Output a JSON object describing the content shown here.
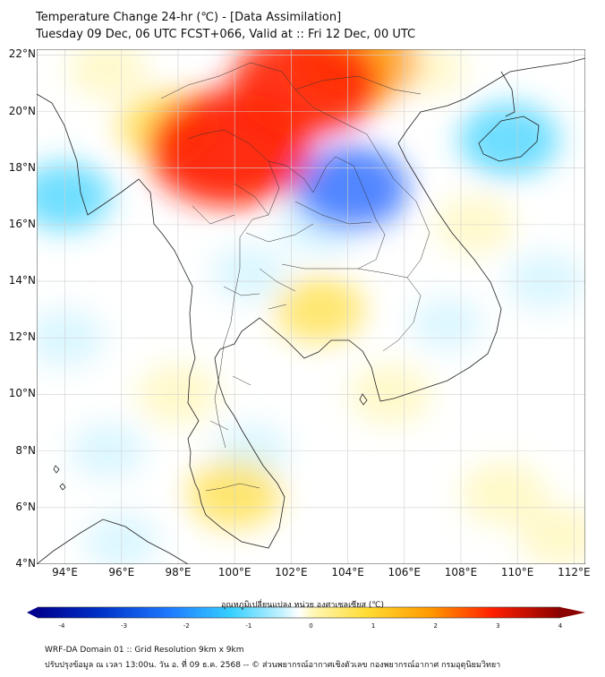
{
  "header": {
    "title_line1": "Temperature Change 24-hr (℃) - [Data Assimilation]",
    "title_line2": "Tuesday 09 Dec, 06 UTC FCST+066, Valid at :: Fri 12 Dec, 00 UTC"
  },
  "map": {
    "lat_labels": [
      "22°N",
      "20°N",
      "18°N",
      "16°N",
      "14°N",
      "12°N",
      "10°N",
      "8°N",
      "6°N",
      "4°N"
    ],
    "lon_labels": [
      "94°E",
      "96°E",
      "98°E",
      "100°E",
      "102°E",
      "104°E",
      "106°E",
      "108°E",
      "110°E",
      "112°E"
    ],
    "lat_range": [
      4,
      22.2
    ],
    "lon_range": [
      93,
      112.4
    ],
    "anomalies": [
      {
        "name": "warm-core-north-thailand",
        "lon": 99.8,
        "lat": 18.7,
        "value": 3.2
      },
      {
        "name": "warm-northeast-laos",
        "lon": 102.5,
        "lat": 21.0,
        "value": 2.8
      },
      {
        "name": "warm-ne-laos-2",
        "lon": 104.2,
        "lat": 21.8,
        "value": 2.3
      },
      {
        "name": "warm-myanmar-band",
        "lon": 97.5,
        "lat": 19.5,
        "value": 1.3
      },
      {
        "name": "cool-northeast-thailand",
        "lon": 104.1,
        "lat": 17.3,
        "value": -1.9
      },
      {
        "name": "cool-northeast-wide",
        "lon": 103.0,
        "lat": 16.0,
        "value": -1.0
      },
      {
        "name": "cool-central-thailand",
        "lon": 100.5,
        "lat": 14.3,
        "value": -0.8
      },
      {
        "name": "cool-hainan",
        "lon": 109.7,
        "lat": 19.0,
        "value": -1.5
      },
      {
        "name": "cool-bay-of-bengal-north",
        "lon": 94.0,
        "lat": 17.0,
        "value": -1.3
      },
      {
        "name": "cool-andaman-west",
        "lon": 94.0,
        "lat": 12.0,
        "value": -0.9
      },
      {
        "name": "cool-andaman-sw",
        "lon": 95.5,
        "lat": 8.0,
        "value": -0.8
      },
      {
        "name": "cool-scs-east",
        "lon": 111.0,
        "lat": 14.0,
        "value": -0.9
      },
      {
        "name": "cool-scs-mid",
        "lon": 107.5,
        "lat": 12.5,
        "value": -0.7
      },
      {
        "name": "cool-gulf-thailand",
        "lon": 100.6,
        "lat": 8.0,
        "value": -0.8
      },
      {
        "name": "cool-sumatra-north",
        "lon": 96.0,
        "lat": 4.8,
        "value": -0.8
      },
      {
        "name": "warm-cambodia",
        "lon": 103.0,
        "lat": 13.0,
        "value": 1.2
      },
      {
        "name": "warm-vietnam-south",
        "lon": 105.5,
        "lat": 10.0,
        "value": 1.0
      },
      {
        "name": "warm-malay-peninsula",
        "lon": 100.0,
        "lat": 6.5,
        "value": 1.3
      },
      {
        "name": "warm-myanmar-south",
        "lon": 98.0,
        "lat": 10.0,
        "value": 1.0
      },
      {
        "name": "warm-scs-south",
        "lon": 109.5,
        "lat": 6.5,
        "value": 1.1
      },
      {
        "name": "warm-scs-south-2",
        "lon": 111.5,
        "lat": 5.0,
        "value": 1.0
      },
      {
        "name": "warm-gulf-tonkin",
        "lon": 108.5,
        "lat": 16.0,
        "value": 0.9
      },
      {
        "name": "warm-north-myanmar",
        "lon": 95.5,
        "lat": 21.5,
        "value": 0.9
      },
      {
        "name": "warm-vietnam-north",
        "lon": 107.0,
        "lat": 21.5,
        "value": 0.6
      }
    ]
  },
  "colorbar": {
    "title": "อุณหภูมิเปลี่ยนแปลง หน่วย องศาเซลเซียส (℃)",
    "ticks": [
      "-4",
      "-3",
      "-2",
      "-1",
      "0",
      "1",
      "2",
      "3",
      "4"
    ],
    "range": [
      -4,
      4
    ]
  },
  "footer": {
    "line1": "WRF-DA Domain 01 :: Grid Resolution 9km x 9km",
    "line2": "ปรับปรุงข้อมูล ณ เวลา 13:00น. วัน อ. ที่ 09 ธ.ค. 2568 -- © ส่วนพยากรณ์อากาศเชิงตัวเลข กองพยากรณ์อากาศ กรมอุตุนิยมวิทยา"
  },
  "colors": {
    "dark_blue": "#000090",
    "blue": "#1e64ff",
    "cyan": "#35d0ff",
    "pale_cyan": "#c8f3ff",
    "white": "#ffffff",
    "pale_yellow": "#fff6b0",
    "yellow": "#ffdc32",
    "orange": "#ff9a00",
    "red": "#ff2000",
    "dark_red": "#8b0000",
    "coast": "#222222",
    "grid": "#cfcfcf"
  }
}
